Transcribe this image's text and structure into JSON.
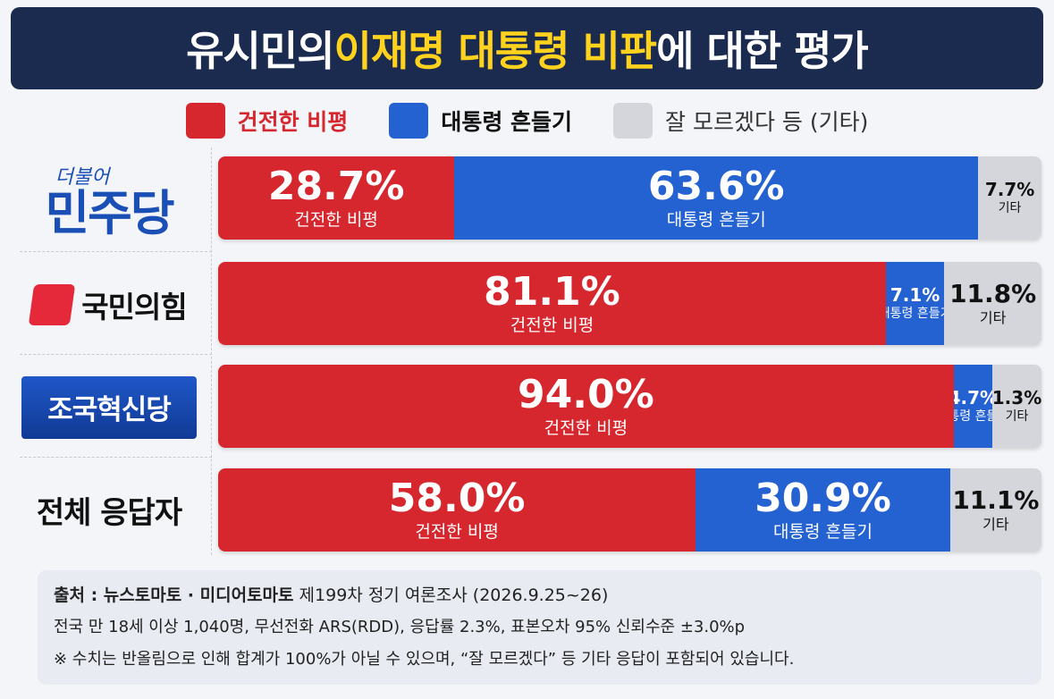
{
  "title": {
    "part1": "유시민의 ",
    "highlight": "이재명 대통령 비판",
    "part2": "에 대한 평가"
  },
  "legend": [
    {
      "label": "건전한 비평",
      "color": "#d6262e"
    },
    {
      "label": "대통령 흔들기",
      "color": "#2462d2"
    },
    {
      "label": "잘 모르겠다 등 (기타)",
      "color": "#d4d6db"
    }
  ],
  "parties": {
    "democratic": {
      "small": "더불어",
      "big": "민주당"
    },
    "ppp": {
      "name": "국민의힘"
    },
    "rebuild": {
      "name": "조국혁신당"
    },
    "total": {
      "name": "전체 응답자"
    }
  },
  "chart_data": {
    "type": "bar",
    "stacked": true,
    "orientation": "horizontal",
    "categories": [
      "민주당",
      "국민의힘",
      "조국혁신당",
      "전체 응답자"
    ],
    "series": [
      {
        "name": "건전한 비평",
        "values": [
          28.7,
          81.1,
          94.0,
          58.0
        ],
        "labels": [
          "28.7%",
          "81.1%",
          "94.0%",
          "58.0%"
        ],
        "caption": "건전한 비평",
        "color": "#d6262e"
      },
      {
        "name": "대통령 흔들기",
        "values": [
          63.6,
          7.1,
          4.7,
          30.9
        ],
        "labels": [
          "63.6%",
          "7.1%",
          "4.7%",
          "30.9%"
        ],
        "caption": "대통령 흔들기",
        "color": "#2462d2"
      },
      {
        "name": "잘 모르겠다 등 (기타)",
        "values": [
          7.7,
          11.8,
          1.3,
          11.1
        ],
        "labels": [
          "7.7%",
          "11.8%",
          "1.3%",
          "11.1%"
        ],
        "caption": "기타",
        "color": "#d4d6db"
      }
    ]
  },
  "footer": {
    "source_bold": "출처 : 뉴스토마토 · 미디어토마토",
    "source_rest": " 제199차 정기 여론조사 (2026.9.25~26)",
    "method": "전국 만 18세 이상 1,040명, 무선전화 ARS(RDD), 응답률 2.3%, 표본오차 95% 신뢰수준 ±3.0%p",
    "note": "※ 수치는 반올림으로 인해 합계가 100%가 아닐 수 있으며, “잘 모르겠다” 등 기타 응답이 포함되어 있습니다."
  }
}
